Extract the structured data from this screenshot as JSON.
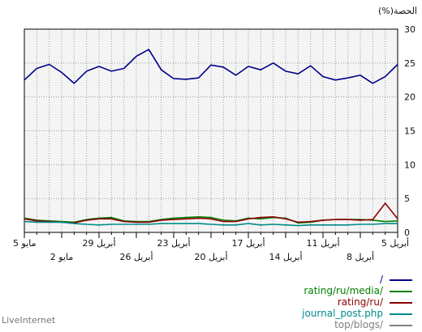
{
  "brand": "LiveInternet",
  "chart_data": {
    "type": "line",
    "ylabel": "(%)الحصة",
    "ylim": [
      0,
      30
    ],
    "yticks": [
      0,
      5,
      10,
      15,
      20,
      25,
      30
    ],
    "grid": true,
    "x_direction": "right-to-left",
    "x_major_ticks": [
      {
        "index": 0,
        "label": "5 أبريل"
      },
      {
        "index": 3,
        "label": "8 أبريل"
      },
      {
        "index": 6,
        "label": "11 أبريل"
      },
      {
        "index": 9,
        "label": "14 أبريل"
      },
      {
        "index": 12,
        "label": "17 أبريل"
      },
      {
        "index": 15,
        "label": "20 أبريل"
      },
      {
        "index": 18,
        "label": "23 أبريل"
      },
      {
        "index": 21,
        "label": "26 أبريل"
      },
      {
        "index": 24,
        "label": "29 أبريل"
      },
      {
        "index": 27,
        "label": "2 مايو"
      },
      {
        "index": 30,
        "label": "5 مايو"
      }
    ],
    "x_count": 31,
    "series": [
      {
        "name": "/",
        "color": "#00008b",
        "values": [
          24.8,
          23.0,
          22.0,
          23.2,
          22.8,
          22.5,
          23.0,
          24.6,
          23.4,
          23.8,
          25.0,
          24.0,
          24.5,
          23.2,
          24.4,
          24.7,
          22.8,
          22.6,
          22.7,
          24.0,
          27.0,
          26.0,
          24.2,
          23.8,
          24.5,
          23.8,
          22.0,
          23.6,
          24.8,
          24.2,
          22.5
        ]
      },
      {
        "name": "rating/ru/media/",
        "color": "#008000",
        "values": [
          1.7,
          1.6,
          1.8,
          1.9,
          1.9,
          1.9,
          1.8,
          1.5,
          1.4,
          2.1,
          2.2,
          2.0,
          2.1,
          1.7,
          1.8,
          2.2,
          2.3,
          2.2,
          2.1,
          1.9,
          1.6,
          1.6,
          1.7,
          2.2,
          2.1,
          1.9,
          1.5,
          1.6,
          1.7,
          1.8,
          2.1
        ]
      },
      {
        "name": "rating/ru/",
        "color": "#8b0000",
        "values": [
          2.0,
          4.3,
          1.9,
          1.8,
          1.9,
          1.9,
          1.8,
          1.6,
          1.5,
          2.0,
          2.3,
          2.2,
          2.0,
          1.6,
          1.6,
          2.0,
          2.1,
          2.0,
          1.9,
          1.8,
          1.5,
          1.5,
          1.6,
          2.0,
          2.0,
          1.8,
          1.4,
          1.5,
          1.6,
          1.7,
          2.0
        ]
      },
      {
        "name": "journal_post.php",
        "color": "#008b8b",
        "values": [
          1.3,
          1.3,
          1.2,
          1.2,
          1.1,
          1.1,
          1.1,
          1.1,
          1.0,
          1.1,
          1.2,
          1.1,
          1.3,
          1.1,
          1.1,
          1.2,
          1.3,
          1.3,
          1.3,
          1.3,
          1.2,
          1.2,
          1.2,
          1.2,
          1.1,
          1.2,
          1.3,
          1.5,
          1.5,
          1.5,
          1.6
        ]
      },
      {
        "name": "top/blogs/",
        "color": "#808080",
        "values": []
      }
    ]
  }
}
